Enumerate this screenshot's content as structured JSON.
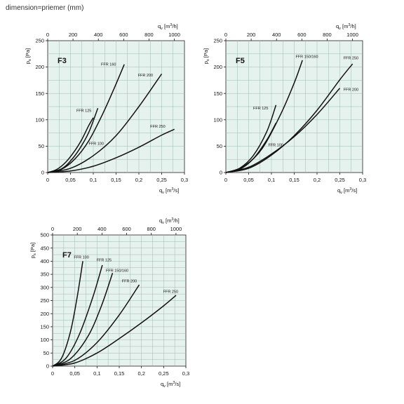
{
  "caption": "dimension=priemer (mm)",
  "chart_data": [
    {
      "type": "line",
      "title": "F3",
      "xlabel": "qv [m3/s]",
      "x2label": "qv [m3/h]",
      "ylabel": "ps [Pa]",
      "xlim": [
        0,
        0.3
      ],
      "ylim": [
        0,
        250
      ],
      "x2lim": [
        0,
        1080
      ],
      "xticks": [
        "0",
        "0,05",
        "0,1",
        "0,15",
        "0,2",
        "0,25",
        "0,3"
      ],
      "x2ticks": [
        "0",
        "200",
        "400",
        "600",
        "800",
        "1000"
      ],
      "yticks": [
        "0",
        "50",
        "100",
        "150",
        "200",
        "250"
      ],
      "grid": true,
      "series": [
        {
          "name": "FFR 100",
          "x": [
            0,
            0.02,
            0.04,
            0.06,
            0.075,
            0.09,
            0.1
          ],
          "y": [
            0,
            6,
            20,
            42,
            63,
            89,
            104
          ]
        },
        {
          "name": "FFR 125",
          "x": [
            0,
            0.03,
            0.05,
            0.07,
            0.09,
            0.11
          ],
          "y": [
            0,
            7,
            22,
            45,
            76,
            122
          ]
        },
        {
          "name": "FFR 160",
          "x": [
            0,
            0.03,
            0.06,
            0.09,
            0.12,
            0.145,
            0.168
          ],
          "y": [
            0,
            6,
            26,
            60,
            110,
            158,
            205
          ]
        },
        {
          "name": "FFR 200",
          "x": [
            0,
            0.05,
            0.1,
            0.15,
            0.2,
            0.25
          ],
          "y": [
            0,
            8,
            32,
            70,
            125,
            187
          ]
        },
        {
          "name": "FFR 250",
          "x": [
            0,
            0.05,
            0.1,
            0.15,
            0.2,
            0.25,
            0.278
          ],
          "y": [
            0,
            3,
            12,
            28,
            48,
            71,
            82
          ]
        }
      ],
      "labels": [
        "FFR 160",
        "FFR 200",
        "FFR 125",
        "FFR 100",
        "FFR 250"
      ]
    },
    {
      "type": "line",
      "title": "F5",
      "xlabel": "qv [m3/s]",
      "x2label": "qv [m3/h]",
      "ylabel": "ps [Pa]",
      "xlim": [
        0,
        0.3
      ],
      "ylim": [
        0,
        250
      ],
      "x2lim": [
        0,
        1080
      ],
      "xticks": [
        "0",
        "0,05",
        "0,1",
        "0,15",
        "0,2",
        "0,25",
        "0,3"
      ],
      "x2ticks": [
        "0",
        "200",
        "400",
        "600",
        "800",
        "1000"
      ],
      "yticks": [
        "0",
        "50",
        "100",
        "150",
        "200",
        "250"
      ],
      "grid": true,
      "series": [
        {
          "name": "FFR 100",
          "x": [
            0,
            0.03,
            0.06,
            0.09,
            0.11
          ],
          "y": [
            0,
            6,
            26,
            62,
            94
          ]
        },
        {
          "name": "FFR 125",
          "x": [
            0,
            0.03,
            0.06,
            0.09,
            0.11
          ],
          "y": [
            0,
            8,
            32,
            78,
            128
          ]
        },
        {
          "name": "FFR 150/160",
          "x": [
            0,
            0.04,
            0.08,
            0.12,
            0.15,
            0.168
          ],
          "y": [
            0,
            12,
            46,
            110,
            170,
            213
          ]
        },
        {
          "name": "FFR 200",
          "x": [
            0,
            0.05,
            0.1,
            0.15,
            0.2,
            0.25
          ],
          "y": [
            0,
            10,
            35,
            68,
            110,
            160
          ]
        },
        {
          "name": "FFR 250",
          "x": [
            0,
            0.05,
            0.1,
            0.15,
            0.2,
            0.25,
            0.278
          ],
          "y": [
            0,
            8,
            33,
            70,
            118,
            176,
            206
          ]
        }
      ],
      "labels": [
        "FFR 150/160",
        "FFR 250",
        "FFR 200",
        "FFR 125",
        "FFR 100"
      ]
    },
    {
      "type": "line",
      "title": "F7",
      "xlabel": "qv [m3/s]",
      "x2label": "qv [m3/h]",
      "ylabel": "ps [Pa]",
      "xlim": [
        0,
        0.3
      ],
      "ylim": [
        0,
        500
      ],
      "x2lim": [
        0,
        1080
      ],
      "xticks": [
        "0",
        "0,05",
        "0,1",
        "0,15",
        "0,2",
        "0,25",
        "0,3"
      ],
      "x2ticks": [
        "0",
        "200",
        "400",
        "600",
        "800",
        "1000"
      ],
      "yticks": [
        "0",
        "50",
        "100",
        "150",
        "200",
        "250",
        "300",
        "350",
        "400",
        "450",
        "500"
      ],
      "grid": true,
      "series": [
        {
          "name": "FFR 100",
          "x": [
            0,
            0.02,
            0.04,
            0.055,
            0.068
          ],
          "y": [
            0,
            30,
            130,
            260,
            400
          ]
        },
        {
          "name": "FFR 125",
          "x": [
            0,
            0.03,
            0.06,
            0.09,
            0.112
          ],
          "y": [
            0,
            30,
            120,
            260,
            385
          ]
        },
        {
          "name": "FFR 150/160",
          "x": [
            0,
            0.04,
            0.08,
            0.11,
            0.135
          ],
          "y": [
            0,
            28,
            115,
            230,
            355
          ]
        },
        {
          "name": "FFR 200",
          "x": [
            0,
            0.05,
            0.1,
            0.15,
            0.195
          ],
          "y": [
            0,
            22,
            90,
            195,
            310
          ]
        },
        {
          "name": "FFR 250",
          "x": [
            0,
            0.05,
            0.1,
            0.15,
            0.2,
            0.25,
            0.278
          ],
          "y": [
            0,
            12,
            50,
            105,
            165,
            230,
            270
          ]
        }
      ],
      "labels": [
        "FFR 100",
        "FFR 125",
        "FFR 150/160",
        "FFR 200",
        "FFR 250"
      ]
    }
  ]
}
